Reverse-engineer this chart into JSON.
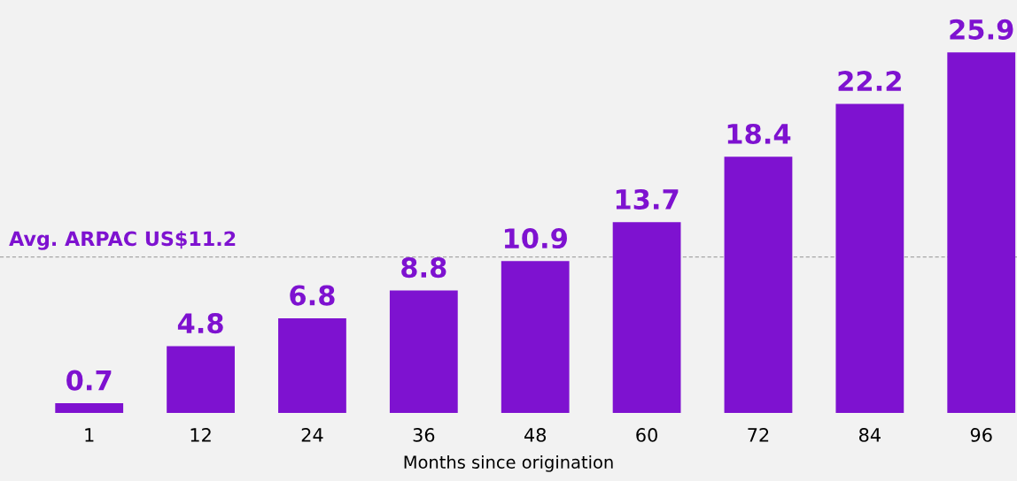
{
  "chart_data": {
    "type": "bar",
    "categories": [
      "1",
      "12",
      "24",
      "36",
      "48",
      "60",
      "72",
      "84",
      "96"
    ],
    "values": [
      0.7,
      4.8,
      6.8,
      8.8,
      10.9,
      13.7,
      18.4,
      22.2,
      25.9
    ],
    "color": "#7e12d0",
    "data_labels": true,
    "xlabel": "Months since origination",
    "ref_lines": [
      {
        "axis": "y",
        "value": 11.2,
        "label": "Avg. ARPAC US$11.2",
        "color": "#a6a6a6",
        "line_style": "dashed"
      }
    ],
    "grid": false,
    "legend": false
  }
}
